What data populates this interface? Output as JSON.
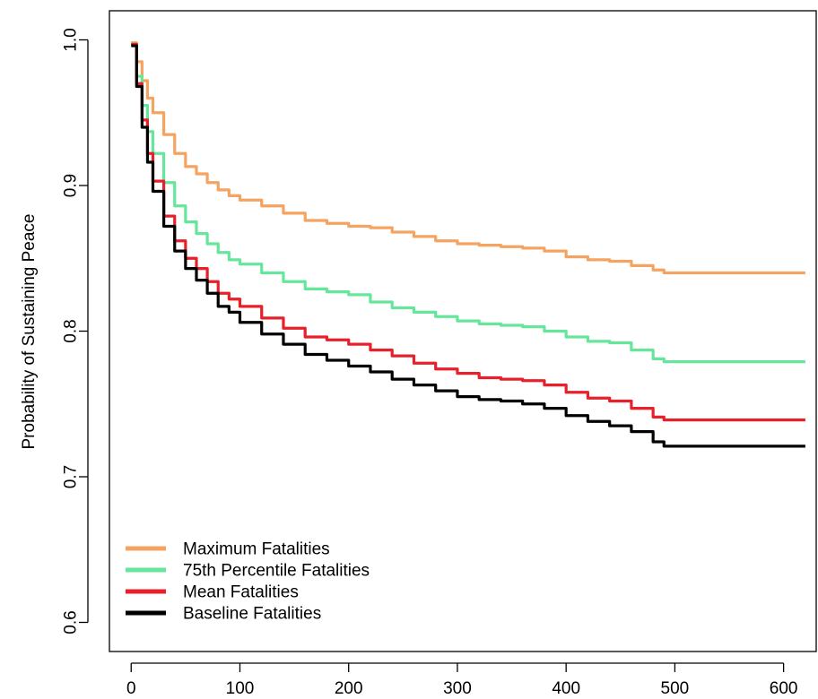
{
  "chart_data": {
    "type": "line",
    "title": "",
    "xlabel": "",
    "ylabel": "Probability of Sustaining Peace",
    "xlim": [
      -20,
      630
    ],
    "ylim": [
      0.58,
      1.02
    ],
    "xticks": [
      0,
      100,
      200,
      300,
      400,
      500,
      600
    ],
    "xtick_labels": [
      "0",
      "100",
      "200",
      "300",
      "400",
      "500",
      "600"
    ],
    "yticks": [
      0.6,
      0.7,
      0.8,
      0.9,
      1.0
    ],
    "ytick_labels": [
      "0.6",
      "0.7",
      "0.8",
      "0.9",
      "1.0"
    ],
    "grid": false,
    "legend_position": "bottom-left",
    "series": [
      {
        "name": "Maximum Fatalities",
        "color": "#F4A460",
        "x": [
          0,
          5,
          10,
          15,
          20,
          30,
          40,
          50,
          60,
          70,
          80,
          90,
          100,
          120,
          140,
          160,
          180,
          200,
          220,
          240,
          260,
          280,
          300,
          320,
          340,
          360,
          380,
          400,
          420,
          440,
          460,
          480,
          490,
          620
        ],
        "y": [
          0.998,
          0.985,
          0.972,
          0.96,
          0.95,
          0.935,
          0.922,
          0.913,
          0.908,
          0.902,
          0.897,
          0.893,
          0.89,
          0.886,
          0.881,
          0.876,
          0.874,
          0.872,
          0.871,
          0.868,
          0.865,
          0.862,
          0.86,
          0.859,
          0.858,
          0.857,
          0.855,
          0.851,
          0.849,
          0.848,
          0.845,
          0.842,
          0.84,
          0.84
        ]
      },
      {
        "name": "75th Percentile Fatalities",
        "color": "#66E69A",
        "x": [
          0,
          5,
          10,
          15,
          20,
          30,
          40,
          50,
          60,
          70,
          80,
          90,
          100,
          120,
          140,
          160,
          180,
          200,
          220,
          240,
          260,
          280,
          300,
          320,
          340,
          360,
          380,
          400,
          420,
          440,
          460,
          480,
          490,
          620
        ],
        "y": [
          0.997,
          0.975,
          0.955,
          0.937,
          0.922,
          0.902,
          0.886,
          0.875,
          0.867,
          0.86,
          0.854,
          0.849,
          0.846,
          0.84,
          0.834,
          0.829,
          0.827,
          0.825,
          0.82,
          0.816,
          0.813,
          0.81,
          0.807,
          0.805,
          0.804,
          0.803,
          0.8,
          0.796,
          0.793,
          0.792,
          0.787,
          0.781,
          0.779,
          0.779
        ]
      },
      {
        "name": "Mean Fatalities",
        "color": "#E8202A",
        "x": [
          0,
          5,
          10,
          15,
          20,
          30,
          40,
          50,
          60,
          70,
          80,
          90,
          100,
          120,
          140,
          160,
          180,
          200,
          220,
          240,
          260,
          280,
          300,
          320,
          340,
          360,
          380,
          400,
          420,
          440,
          460,
          480,
          490,
          620
        ],
        "y": [
          0.997,
          0.97,
          0.945,
          0.922,
          0.903,
          0.879,
          0.862,
          0.85,
          0.843,
          0.834,
          0.826,
          0.822,
          0.817,
          0.809,
          0.802,
          0.796,
          0.794,
          0.791,
          0.787,
          0.783,
          0.778,
          0.774,
          0.771,
          0.768,
          0.767,
          0.766,
          0.763,
          0.758,
          0.754,
          0.752,
          0.747,
          0.741,
          0.739,
          0.739
        ]
      },
      {
        "name": "Baseline Fatalities",
        "color": "#000000",
        "x": [
          0,
          5,
          10,
          15,
          20,
          30,
          40,
          50,
          60,
          70,
          80,
          90,
          100,
          120,
          140,
          160,
          180,
          200,
          220,
          240,
          260,
          280,
          300,
          320,
          340,
          360,
          380,
          400,
          420,
          440,
          460,
          480,
          490,
          620
        ],
        "y": [
          0.996,
          0.968,
          0.94,
          0.916,
          0.896,
          0.872,
          0.855,
          0.843,
          0.835,
          0.826,
          0.817,
          0.813,
          0.806,
          0.798,
          0.791,
          0.784,
          0.78,
          0.776,
          0.772,
          0.767,
          0.763,
          0.759,
          0.755,
          0.753,
          0.752,
          0.75,
          0.747,
          0.742,
          0.738,
          0.735,
          0.731,
          0.724,
          0.721,
          0.721
        ]
      }
    ]
  }
}
